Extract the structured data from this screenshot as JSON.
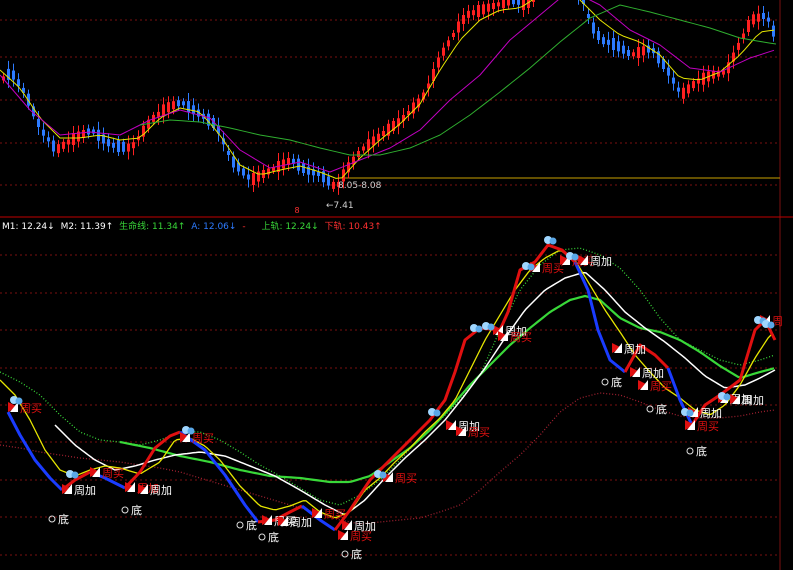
{
  "colors": {
    "background": "#000000",
    "grid": "#7a1010",
    "separator": "#c00000",
    "candle_up": "#ff2020",
    "candle_down": "#2d7bff",
    "ma_yellow": "#e6e600",
    "ma_magenta": "#c000c0",
    "ma_green": "#2fae2f",
    "lifeline": "#39d839",
    "white": "#ffffff",
    "lower_rail": "#a02030",
    "blue_line": "#1a3cff",
    "red_line": "#e01010"
  },
  "price_panel": {
    "annotation_range": "8.05-8.08",
    "annotation_low": "←7.41",
    "marker": "8"
  },
  "indicator_legend": [
    {
      "label": "M1: 12.24↓",
      "color": "#ffffff"
    },
    {
      "label": "M2: 11.39↑",
      "color": "#ffffff"
    },
    {
      "label": "生命线: 11.34↑",
      "color": "#39d839"
    },
    {
      "label": "A: 12.06↓",
      "color": "#2d7bff"
    },
    {
      "label": "-",
      "color": "#ff3030"
    },
    {
      "label": "上轨: 12.24↓",
      "color": "#39d839"
    },
    {
      "label": "下轨: 10.43↑",
      "color": "#ff3030"
    }
  ],
  "signal_texts": {
    "add": "周加",
    "buy": "周买",
    "bottom": "底",
    "cut": "周"
  },
  "chart_data": [
    {
      "type": "candlestick",
      "title": "",
      "annotations": [
        "8.05-8.08",
        "←7.41"
      ],
      "price": [
        8.9,
        8.8,
        8.55,
        8.4,
        8.25,
        8.15,
        8.2,
        8.35,
        8.5,
        8.6,
        8.45,
        8.3,
        8.25,
        8.35,
        8.6,
        8.8,
        8.9,
        8.85,
        8.7,
        8.55,
        8.3,
        8.1,
        7.95,
        7.85,
        7.8,
        7.85,
        7.9,
        7.95,
        8.0,
        7.9,
        7.75,
        7.6,
        7.45,
        7.7,
        8.0,
        8.2,
        8.4,
        8.6,
        8.85,
        9.1,
        9.5,
        9.9,
        10.3,
        10.7,
        11.1,
        11.6,
        12.0,
        12.2,
        12.25,
        12.1,
        11.9,
        11.7,
        11.5,
        11.4,
        11.6,
        11.8,
        11.7,
        11.4,
        11.1,
        10.9,
        10.7,
        10.5,
        10.3,
        10.4,
        10.6,
        10.9,
        11.1,
        11.3,
        11.6,
        11.9,
        12.1,
        12.2,
        11.6
      ]
    },
    {
      "type": "line",
      "title": "",
      "series_values": {
        "M1": 12.24,
        "M2": 11.39,
        "生命线": 11.34,
        "A": 12.06,
        "上轨": 12.24,
        "下轨": 10.43
      },
      "signals": [
        "周加",
        "周买",
        "底"
      ]
    }
  ]
}
